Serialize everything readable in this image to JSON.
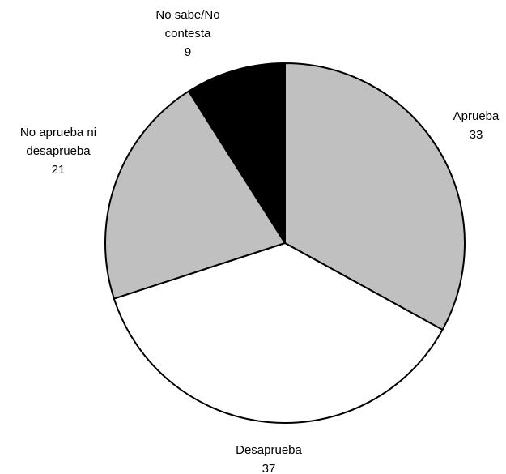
{
  "chart_data": {
    "type": "pie",
    "categories": [
      "Aprueba",
      "Desaprueba",
      "No aprueba ni desaprueba",
      "No sabe/No contesta"
    ],
    "values": [
      33,
      37,
      21,
      9
    ],
    "colors": [
      "#c0c0c0",
      "#ffffff",
      "#c0c0c0",
      "#000000"
    ]
  }
}
